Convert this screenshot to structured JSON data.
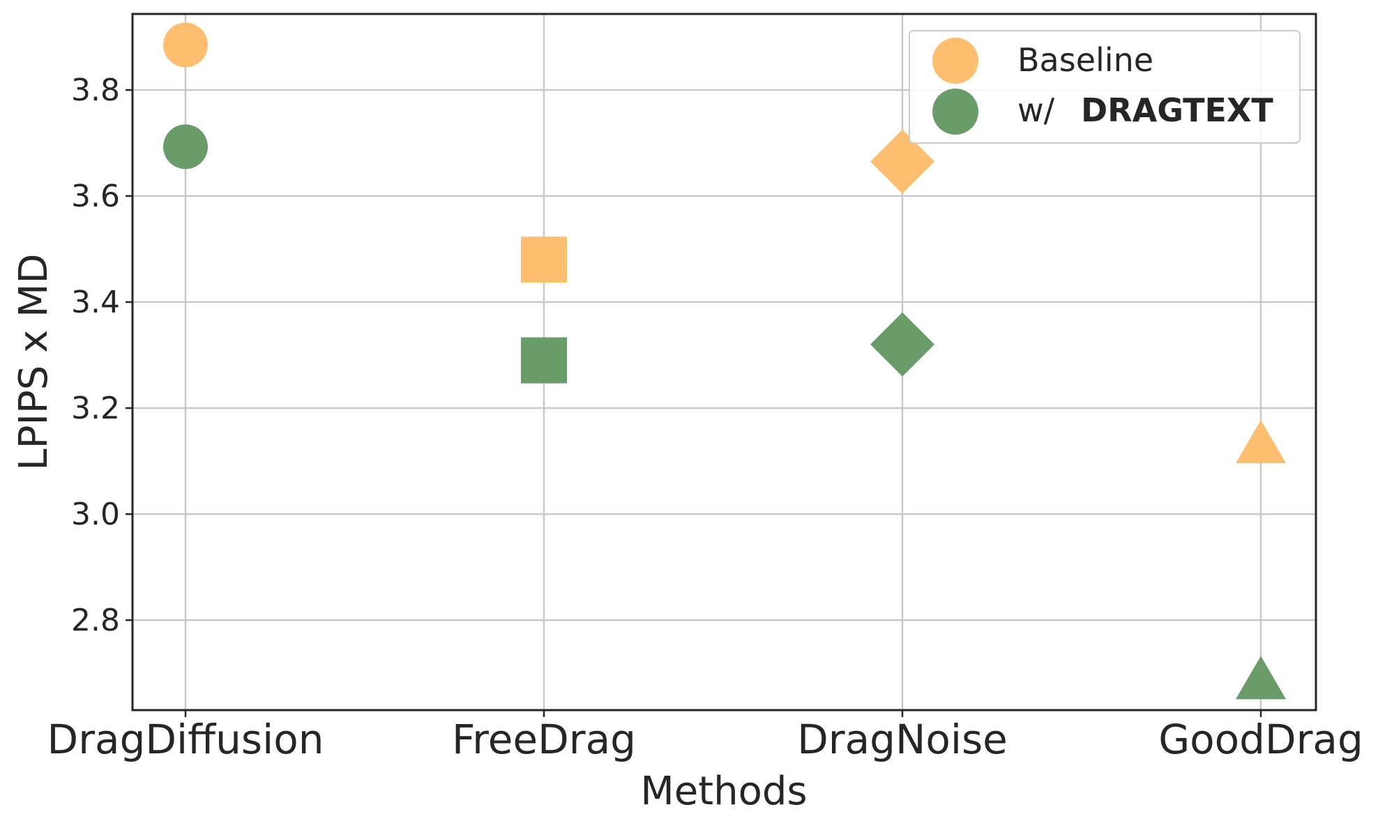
{
  "chart_data": {
    "type": "scatter",
    "xlabel": "Methods",
    "ylabel": "LPIPS x MD",
    "categories": [
      "DragDiffusion",
      "FreeDrag",
      "DragNoise",
      "GoodDrag"
    ],
    "markers": [
      "circle",
      "square",
      "diamond",
      "triangle"
    ],
    "ylim": [
      2.63,
      3.945
    ],
    "yticks": [
      "2.8",
      "3.0",
      "3.2",
      "3.4",
      "3.6",
      "3.8"
    ],
    "grid": true,
    "legend_position": "top-right",
    "series": [
      {
        "legend_label": "Baseline",
        "color": "#fdbf6f",
        "values": [
          3.885,
          3.48,
          3.665,
          3.13
        ]
      },
      {
        "legend_label_prefix": "w/",
        "legend_label_bold": "DRAGTEXT",
        "color": "#6a9c6a",
        "values": [
          3.693,
          3.29,
          3.32,
          2.685
        ]
      }
    ]
  }
}
